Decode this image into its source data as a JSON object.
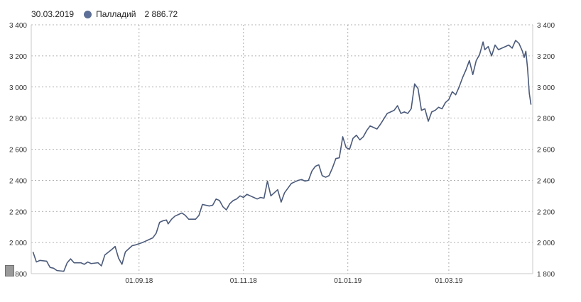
{
  "header": {
    "date": "30.03.2019",
    "series_name": "Палладий",
    "current_value": "2 886.72",
    "series_color": "#5d6f96"
  },
  "chart_data": {
    "type": "line",
    "series": [
      {
        "name": "Палладий",
        "color": "#4b5a7a",
        "points": [
          [
            "2018-07-01",
            1940
          ],
          [
            "2018-07-03",
            1875
          ],
          [
            "2018-07-05",
            1885
          ],
          [
            "2018-07-09",
            1880
          ],
          [
            "2018-07-11",
            1840
          ],
          [
            "2018-07-13",
            1835
          ],
          [
            "2018-07-15",
            1820
          ],
          [
            "2018-07-19",
            1815
          ],
          [
            "2018-07-21",
            1870
          ],
          [
            "2018-07-23",
            1895
          ],
          [
            "2018-07-25",
            1870
          ],
          [
            "2018-07-29",
            1870
          ],
          [
            "2018-07-31",
            1860
          ],
          [
            "2018-08-02",
            1875
          ],
          [
            "2018-08-04",
            1865
          ],
          [
            "2018-08-08",
            1870
          ],
          [
            "2018-08-10",
            1850
          ],
          [
            "2018-08-12",
            1920
          ],
          [
            "2018-08-16",
            1955
          ],
          [
            "2018-08-18",
            1975
          ],
          [
            "2018-08-20",
            1900
          ],
          [
            "2018-08-22",
            1860
          ],
          [
            "2018-08-24",
            1940
          ],
          [
            "2018-08-26",
            1960
          ],
          [
            "2018-08-28",
            1980
          ],
          [
            "2018-08-30",
            1985
          ],
          [
            "2018-09-03",
            2000
          ],
          [
            "2018-09-05",
            2010
          ],
          [
            "2018-09-07",
            2020
          ],
          [
            "2018-09-09",
            2030
          ],
          [
            "2018-09-11",
            2060
          ],
          [
            "2018-09-13",
            2130
          ],
          [
            "2018-09-15",
            2140
          ],
          [
            "2018-09-17",
            2145
          ],
          [
            "2018-09-18",
            2120
          ],
          [
            "2018-09-20",
            2150
          ],
          [
            "2018-09-22",
            2170
          ],
          [
            "2018-09-24",
            2180
          ],
          [
            "2018-09-26",
            2190
          ],
          [
            "2018-09-28",
            2175
          ],
          [
            "2018-09-30",
            2150
          ],
          [
            "2018-10-04",
            2150
          ],
          [
            "2018-10-06",
            2175
          ],
          [
            "2018-10-08",
            2245
          ],
          [
            "2018-10-12",
            2235
          ],
          [
            "2018-10-14",
            2240
          ],
          [
            "2018-10-16",
            2280
          ],
          [
            "2018-10-18",
            2270
          ],
          [
            "2018-10-20",
            2230
          ],
          [
            "2018-10-22",
            2210
          ],
          [
            "2018-10-24",
            2250
          ],
          [
            "2018-10-26",
            2270
          ],
          [
            "2018-10-28",
            2280
          ],
          [
            "2018-10-30",
            2300
          ],
          [
            "2018-11-01",
            2290
          ],
          [
            "2018-11-03",
            2310
          ],
          [
            "2018-11-05",
            2300
          ],
          [
            "2018-11-07",
            2290
          ],
          [
            "2018-11-09",
            2280
          ],
          [
            "2018-11-11",
            2290
          ],
          [
            "2018-11-13",
            2285
          ],
          [
            "2018-11-15",
            2395
          ],
          [
            "2018-11-17",
            2300
          ],
          [
            "2018-11-19",
            2320
          ],
          [
            "2018-11-21",
            2340
          ],
          [
            "2018-11-23",
            2260
          ],
          [
            "2018-11-25",
            2320
          ],
          [
            "2018-11-27",
            2350
          ],
          [
            "2018-11-29",
            2380
          ],
          [
            "2018-12-01",
            2390
          ],
          [
            "2018-12-03",
            2400
          ],
          [
            "2018-12-05",
            2405
          ],
          [
            "2018-12-07",
            2395
          ],
          [
            "2018-12-09",
            2400
          ],
          [
            "2018-12-11",
            2460
          ],
          [
            "2018-12-13",
            2490
          ],
          [
            "2018-12-15",
            2500
          ],
          [
            "2018-12-17",
            2430
          ],
          [
            "2018-12-19",
            2420
          ],
          [
            "2018-12-21",
            2430
          ],
          [
            "2018-12-23",
            2480
          ],
          [
            "2018-12-25",
            2540
          ],
          [
            "2018-12-27",
            2545
          ],
          [
            "2018-12-29",
            2680
          ],
          [
            "2018-12-31",
            2610
          ],
          [
            "2019-01-02",
            2600
          ],
          [
            "2019-01-04",
            2670
          ],
          [
            "2019-01-06",
            2690
          ],
          [
            "2019-01-08",
            2660
          ],
          [
            "2019-01-10",
            2680
          ],
          [
            "2019-01-12",
            2720
          ],
          [
            "2019-01-14",
            2750
          ],
          [
            "2019-01-16",
            2740
          ],
          [
            "2019-01-18",
            2730
          ],
          [
            "2019-01-20",
            2760
          ],
          [
            "2019-01-24",
            2830
          ],
          [
            "2019-01-26",
            2840
          ],
          [
            "2019-01-28",
            2850
          ],
          [
            "2019-01-30",
            2880
          ],
          [
            "2019-02-01",
            2830
          ],
          [
            "2019-02-03",
            2840
          ],
          [
            "2019-02-05",
            2830
          ],
          [
            "2019-02-07",
            2860
          ],
          [
            "2019-02-09",
            3020
          ],
          [
            "2019-02-11",
            2990
          ],
          [
            "2019-02-13",
            2850
          ],
          [
            "2019-02-15",
            2860
          ],
          [
            "2019-02-17",
            2780
          ],
          [
            "2019-02-19",
            2840
          ],
          [
            "2019-02-21",
            2850
          ],
          [
            "2019-02-23",
            2870
          ],
          [
            "2019-02-25",
            2860
          ],
          [
            "2019-02-27",
            2900
          ],
          [
            "2019-03-01",
            2920
          ],
          [
            "2019-03-03",
            2970
          ],
          [
            "2019-03-05",
            2950
          ],
          [
            "2019-03-07",
            3000
          ],
          [
            "2019-03-09",
            3060
          ],
          [
            "2019-03-11",
            3110
          ],
          [
            "2019-03-13",
            3170
          ],
          [
            "2019-03-15",
            3080
          ],
          [
            "2019-03-17",
            3170
          ],
          [
            "2019-03-19",
            3210
          ],
          [
            "2019-03-21",
            3290
          ],
          [
            "2019-03-22",
            3240
          ],
          [
            "2019-03-24",
            3260
          ],
          [
            "2019-03-26",
            3200
          ],
          [
            "2019-03-28",
            3270
          ],
          [
            "2019-03-30",
            3240
          ],
          [
            "2019-04-01",
            3250
          ],
          [
            "2019-04-03",
            3260
          ],
          [
            "2019-04-05",
            3270
          ],
          [
            "2019-04-07",
            3250
          ],
          [
            "2019-04-09",
            3300
          ],
          [
            "2019-04-11",
            3280
          ],
          [
            "2019-04-13",
            3230
          ],
          [
            "2019-04-14",
            3190
          ],
          [
            "2019-04-15",
            3230
          ],
          [
            "2019-04-16",
            3120
          ],
          [
            "2019-04-17",
            2960
          ],
          [
            "2019-04-18",
            2886.72
          ]
        ]
      }
    ],
    "x_ticks": [
      {
        "date": "2018-09-01",
        "label": "01.09.18"
      },
      {
        "date": "2018-11-01",
        "label": "01.11.18"
      },
      {
        "date": "2019-01-01",
        "label": "01.01.19"
      },
      {
        "date": "2019-03-01",
        "label": "01.03.19"
      }
    ],
    "xlim": [
      "2018-06-30",
      "2019-04-19"
    ],
    "ylim": [
      1800,
      3400
    ],
    "y_ticks": [
      {
        "value": 1800,
        "label": "1 800"
      },
      {
        "value": 2000,
        "label": "2 000"
      },
      {
        "value": 2200,
        "label": "2 200"
      },
      {
        "value": 2400,
        "label": "2 400"
      },
      {
        "value": 2600,
        "label": "2 600"
      },
      {
        "value": 2800,
        "label": "2 800"
      },
      {
        "value": 3000,
        "label": "3 000"
      },
      {
        "value": 3200,
        "label": "3 200"
      },
      {
        "value": 3400,
        "label": "3 400"
      }
    ],
    "grid": true,
    "y_labels_both_sides": true,
    "legend": "top-left"
  }
}
